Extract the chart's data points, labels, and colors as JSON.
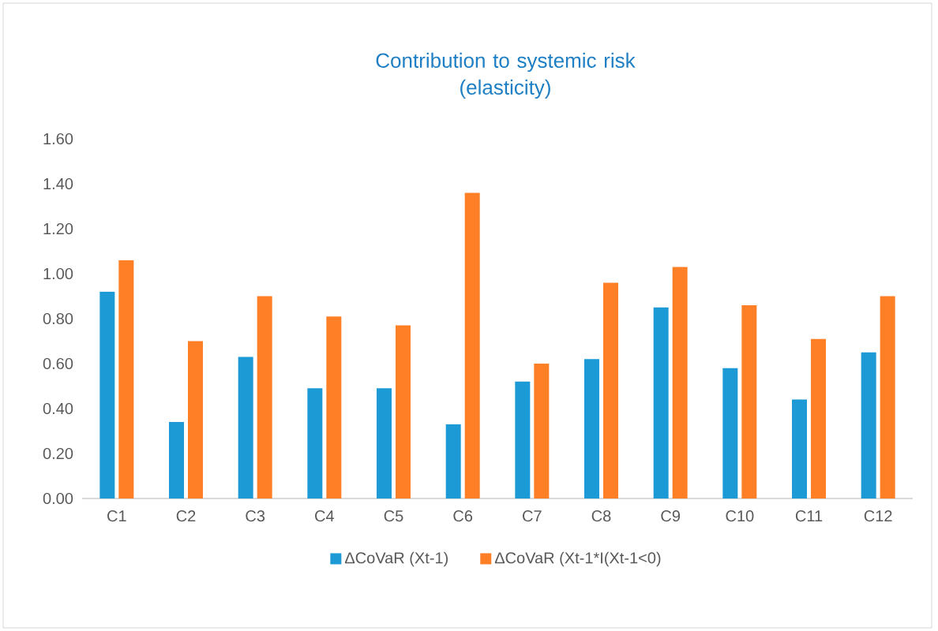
{
  "chart_data": {
    "type": "bar",
    "title": "Contribution to systemic risk\n(elasticity)",
    "categories": [
      "C1",
      "C2",
      "C3",
      "C4",
      "C5",
      "C6",
      "C7",
      "C8",
      "C9",
      "C10",
      "C11",
      "C12"
    ],
    "series": [
      {
        "name": "ΔCoVaR (Xt-1)",
        "color": "#1c9ad6",
        "values": [
          0.92,
          0.34,
          0.63,
          0.49,
          0.49,
          0.33,
          0.52,
          0.62,
          0.85,
          0.58,
          0.44,
          0.65
        ]
      },
      {
        "name": "ΔCoVaR (Xt-1*I(Xt-1<0)",
        "color": "#ff7f27",
        "values": [
          1.06,
          0.7,
          0.9,
          0.81,
          0.77,
          1.36,
          0.6,
          0.96,
          1.03,
          0.86,
          0.71,
          0.9
        ]
      }
    ],
    "ylim": [
      0,
      1.6
    ],
    "yticks": [
      {
        "value": 0,
        "label": "0.00"
      },
      {
        "value": 0.2,
        "label": "0.20"
      },
      {
        "value": 0.4,
        "label": "0.40"
      },
      {
        "value": 0.6,
        "label": "0.60"
      },
      {
        "value": 0.8,
        "label": "0.80"
      },
      {
        "value": 1.0,
        "label": "1.00"
      },
      {
        "value": 1.2,
        "label": "1.20"
      },
      {
        "value": 1.4,
        "label": "1.40"
      },
      {
        "value": 1.6,
        "label": "1.60"
      }
    ],
    "grid": false,
    "legend": "bottom"
  }
}
